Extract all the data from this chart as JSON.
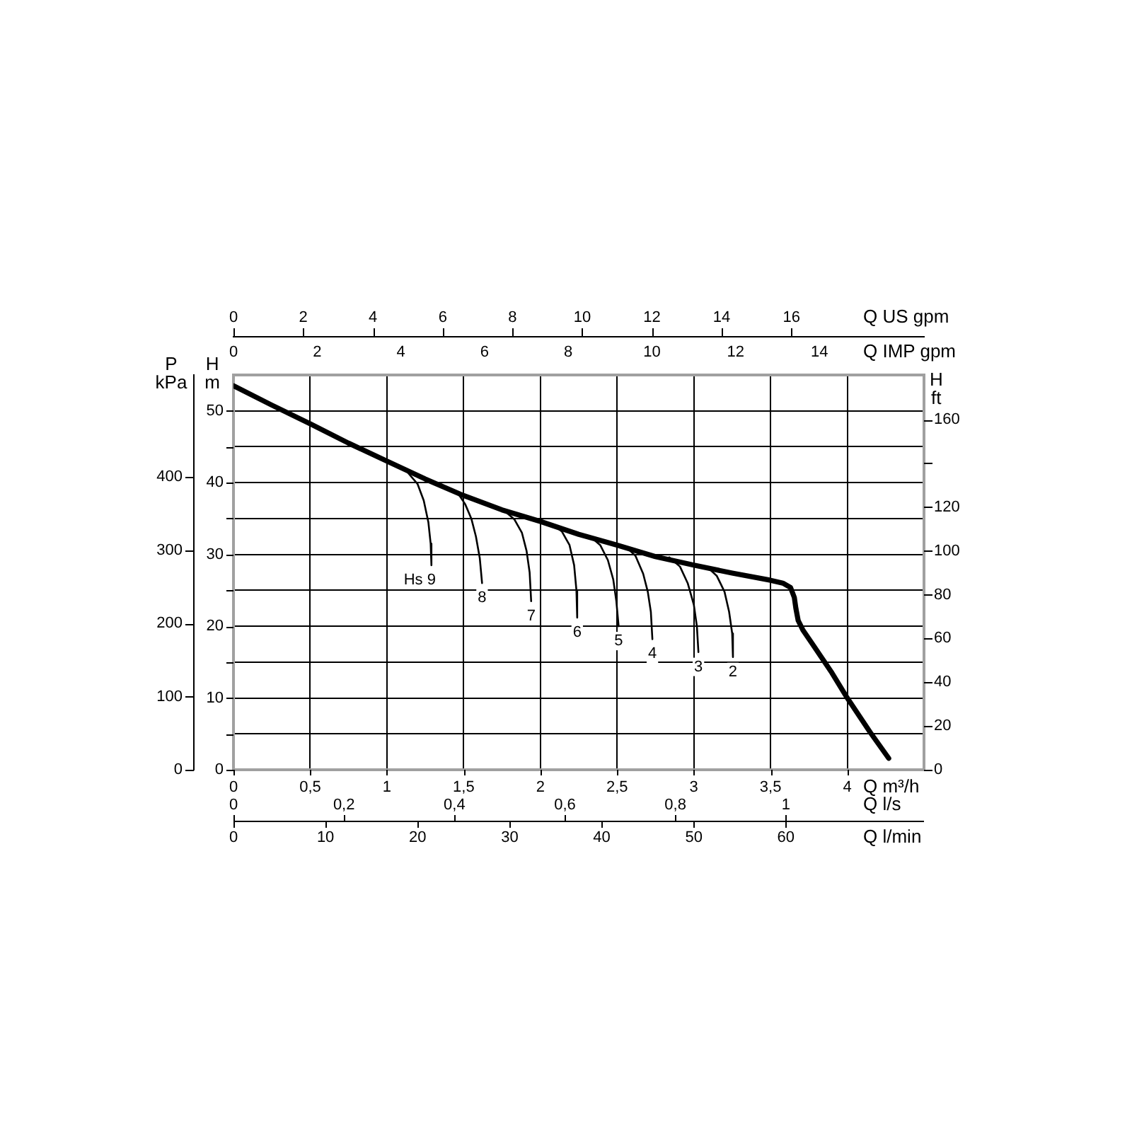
{
  "chart_data": {
    "type": "line",
    "legend": false,
    "grid": true,
    "xlabel": "Q m³/h",
    "xlim": [
      0,
      4.5
    ],
    "xticks": [
      0,
      {
        "value": 0.5,
        "label": "0,5"
      },
      1,
      {
        "value": 1.5,
        "label": "1,5"
      },
      2,
      {
        "value": 2.5,
        "label": "2,5"
      },
      3,
      {
        "value": 3.5,
        "label": "3,5"
      },
      4
    ],
    "x2label": "Q US gpm",
    "x2lim": [
      0,
      19.8
    ],
    "x2ticks": [
      0,
      2,
      4,
      6,
      8,
      10,
      12,
      14,
      16
    ],
    "ylabel": "H m",
    "ylim": [
      0,
      55
    ],
    "yticks": [
      0,
      {
        "value": 5,
        "label": null
      },
      10,
      {
        "value": 15,
        "label": null
      },
      20,
      {
        "value": 25,
        "label": null
      },
      30,
      {
        "value": 35,
        "label": null
      },
      40,
      {
        "value": 45,
        "label": null
      },
      50
    ],
    "y2label": "P kPa",
    "y2lim": [
      0,
      539.4
    ],
    "y2ticks": [
      0,
      100,
      200,
      300,
      400
    ],
    "y3label": "H ft",
    "y3lim": [
      0,
      180.4
    ],
    "y3ticks": [
      0,
      20,
      40,
      60,
      80,
      100,
      120,
      {
        "value": 140,
        "label": null
      },
      160
    ],
    "annotations": [
      "Q IMP gpm",
      "0",
      "2",
      "4",
      "6",
      "8",
      "10",
      "12",
      "14",
      "Q l/s",
      "0",
      "0,2",
      "0,4",
      "0,6",
      "0,8",
      "1",
      "Q l/min",
      "0",
      "10",
      "20",
      "30",
      "40",
      "50",
      "60"
    ],
    "series": [
      {
        "color": "#000000",
        "x": [
          0,
          0.25,
          0.5,
          0.75,
          1.0,
          1.25,
          1.5,
          1.75,
          2.0,
          2.25,
          2.5,
          2.75,
          3.0,
          3.25,
          3.5,
          3.58,
          3.63,
          3.655,
          3.665,
          3.68,
          3.71,
          3.78,
          3.9,
          4.0,
          4.15,
          4.27
        ],
        "values": [
          53.5,
          50.8,
          48.2,
          45.5,
          43.0,
          40.5,
          38.2,
          36.2,
          34.6,
          32.8,
          31.3,
          29.7,
          28.5,
          27.4,
          26.4,
          26.0,
          25.4,
          24.0,
          22.5,
          20.8,
          19.5,
          17.3,
          13.5,
          10.0,
          5.2,
          1.6
        ]
      },
      {
        "name": "Hs 9",
        "color": "#000000",
        "x": [
          1.14,
          1.2,
          1.24,
          1.27,
          1.285,
          1.29
        ],
        "values": [
          41.3,
          39.8,
          37.5,
          34.5,
          31.5,
          28.5
        ]
      },
      {
        "name": "8",
        "color": "#000000",
        "x": [
          1.47,
          1.51,
          1.55,
          1.58,
          1.605,
          1.62
        ],
        "values": [
          38.3,
          37.0,
          35.0,
          32.5,
          29.5,
          26.0
        ]
      },
      {
        "name": "7",
        "color": "#000000",
        "x": [
          1.77,
          1.83,
          1.88,
          1.91,
          1.93,
          1.94
        ],
        "values": [
          36.0,
          34.9,
          33.0,
          30.5,
          27.5,
          23.5
        ]
      },
      {
        "name": "6",
        "color": "#000000",
        "x": [
          2.08,
          2.14,
          2.19,
          2.22,
          2.235,
          2.24
        ],
        "values": [
          34.2,
          33.2,
          31.3,
          28.5,
          25.0,
          21.2
        ]
      },
      {
        "name": "5",
        "color": "#000000",
        "x": [
          2.33,
          2.39,
          2.44,
          2.475,
          2.495,
          2.51
        ],
        "values": [
          32.4,
          31.3,
          29.2,
          26.5,
          23.5,
          20.0
        ]
      },
      {
        "name": "4",
        "color": "#000000",
        "x": [
          2.56,
          2.62,
          2.67,
          2.7,
          2.72,
          2.73
        ],
        "values": [
          31.0,
          29.8,
          27.3,
          24.8,
          22.0,
          18.2
        ]
      },
      {
        "name": "3",
        "color": "#000000",
        "x": [
          2.84,
          2.91,
          2.96,
          3.0,
          3.02,
          3.03
        ],
        "values": [
          29.6,
          28.3,
          26.0,
          23.0,
          20.0,
          16.4
        ]
      },
      {
        "name": "2",
        "color": "#000000",
        "x": [
          3.09,
          3.15,
          3.2,
          3.23,
          3.25,
          3.255
        ],
        "values": [
          28.2,
          27.0,
          24.8,
          22.0,
          19.0,
          15.7
        ]
      }
    ]
  }
}
